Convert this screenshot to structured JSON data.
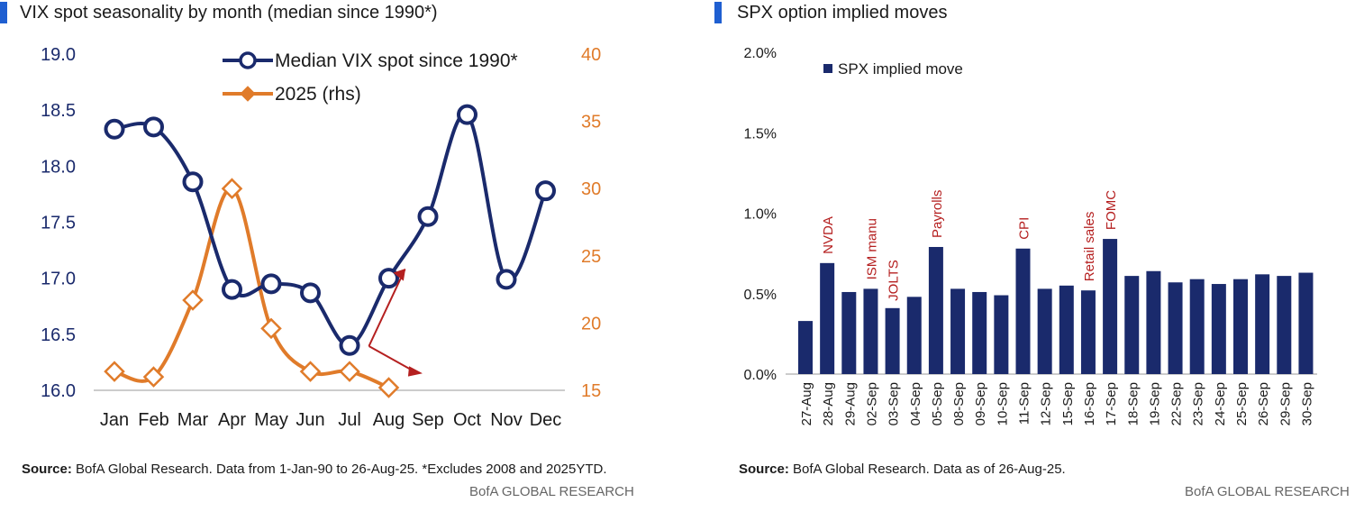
{
  "colors": {
    "navy": "#1a2a6c",
    "orange": "#e07b2a",
    "annotation_red": "#b52020",
    "accent_blue": "#1f5fd1"
  },
  "left": {
    "title": "VIX spot seasonality by month (median since 1990*)",
    "source_label": "Source:",
    "source_text": " BofA Global Research. Data from 1-Jan-90 to 26-Aug-25. *Excludes 2008 and 2025YTD.",
    "brand": "BofA GLOBAL RESEARCH"
  },
  "right": {
    "title": "SPX option implied moves",
    "source_label": "Source:",
    "source_text": " BofA Global Research. Data as of 26-Aug-25.",
    "brand": "BofA GLOBAL RESEARCH"
  },
  "chart_data": [
    {
      "type": "line",
      "title": "VIX spot seasonality by month (median since 1990*)",
      "categories": [
        "Jan",
        "Feb",
        "Mar",
        "Apr",
        "May",
        "Jun",
        "Jul",
        "Aug",
        "Sep",
        "Oct",
        "Nov",
        "Dec"
      ],
      "y_ticks": [
        "19.0",
        "18.5",
        "18.0",
        "17.5",
        "17.0",
        "16.5",
        "16.0"
      ],
      "y2_ticks": [
        "40",
        "35",
        "30",
        "25",
        "20",
        "15"
      ],
      "ylim": [
        16.0,
        19.0
      ],
      "y2lim": [
        15,
        40
      ],
      "legend_placement": "top-center",
      "grid": false,
      "series": [
        {
          "name": "Median VIX spot since 1990*",
          "axis": "left",
          "color": "#1a2a6c",
          "marker": "circle",
          "values": [
            18.33,
            18.35,
            17.86,
            16.9,
            16.95,
            16.87,
            16.4,
            17.0,
            17.55,
            18.46,
            16.99,
            17.78
          ]
        },
        {
          "name": "2025 (rhs)",
          "axis": "right",
          "color": "#e07b2a",
          "marker": "diamond",
          "values": [
            16.4,
            16.0,
            21.7,
            30.0,
            19.6,
            16.4,
            16.4,
            15.2,
            null,
            null,
            null,
            null
          ]
        }
      ],
      "annotations": [
        {
          "type": "arrow",
          "from_month": "Aug",
          "to_month": "Sep",
          "direction": "up",
          "color": "#b52020"
        },
        {
          "type": "arrow",
          "from_month": "Aug",
          "to_month": "Sep",
          "direction": "down",
          "color": "#b52020"
        }
      ]
    },
    {
      "type": "bar",
      "title": "SPX option implied moves",
      "categories": [
        "27-Aug",
        "28-Aug",
        "29-Aug",
        "02-Sep",
        "03-Sep",
        "04-Sep",
        "05-Sep",
        "08-Sep",
        "09-Sep",
        "10-Sep",
        "11-Sep",
        "12-Sep",
        "15-Sep",
        "16-Sep",
        "17-Sep",
        "18-Sep",
        "19-Sep",
        "22-Sep",
        "23-Sep",
        "24-Sep",
        "25-Sep",
        "26-Sep",
        "29-Sep",
        "30-Sep"
      ],
      "series": [
        {
          "name": "SPX implied move",
          "color": "#1a2a6c",
          "values": [
            0.33,
            0.69,
            0.51,
            0.53,
            0.41,
            0.48,
            0.79,
            0.53,
            0.51,
            0.49,
            0.78,
            0.53,
            0.55,
            0.52,
            0.84,
            0.61,
            0.64,
            0.57,
            0.59,
            0.56,
            0.59,
            0.62,
            0.61,
            0.63
          ]
        }
      ],
      "y_ticks": [
        "2.0%",
        "1.5%",
        "1.0%",
        "0.5%",
        "0.0%"
      ],
      "ylim": [
        0,
        2.0
      ],
      "legend_placement": "top-left",
      "grid": false,
      "event_labels": [
        {
          "date": "28-Aug",
          "text": "NVDA"
        },
        {
          "date": "02-Sep",
          "text": "ISM manu"
        },
        {
          "date": "03-Sep",
          "text": "JOLTS"
        },
        {
          "date": "05-Sep",
          "text": "Payrolls"
        },
        {
          "date": "11-Sep",
          "text": "CPI"
        },
        {
          "date": "16-Sep",
          "text": "Retail sales"
        },
        {
          "date": "17-Sep",
          "text": "FOMC"
        }
      ]
    }
  ]
}
